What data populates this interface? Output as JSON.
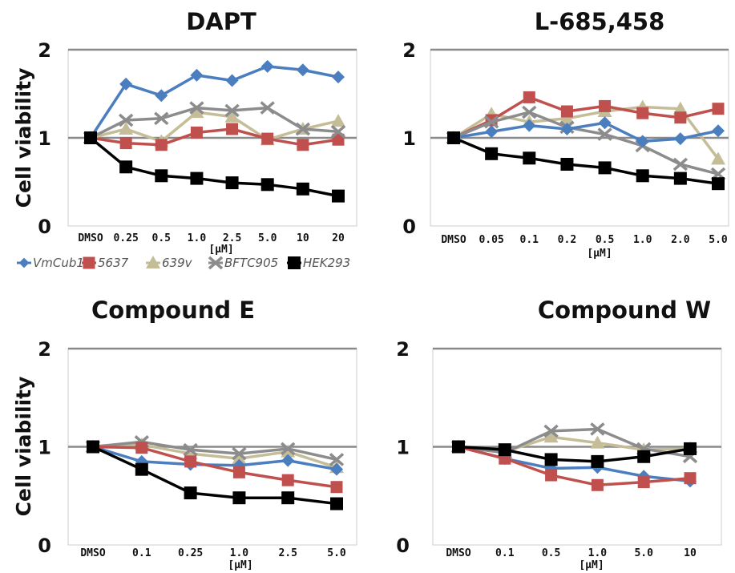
{
  "legend": [
    {
      "name": "VmCub1",
      "color": "#4a7ebf",
      "marker": "diamond"
    },
    {
      "name": "5637",
      "color": "#c0504d",
      "marker": "square"
    },
    {
      "name": "639v",
      "color": "#c4bd97",
      "marker": "triangle"
    },
    {
      "name": "BFTC905",
      "color": "#8c8c8c",
      "marker": "x"
    },
    {
      "name": "HEK293",
      "color": "#000000",
      "marker": "square"
    }
  ],
  "chart_data": [
    {
      "type": "line",
      "title": "DAPT",
      "ylabel": "Cell viability",
      "xlabel": "[µM]",
      "ylim": [
        0,
        2
      ],
      "yticks": [
        "0",
        "1",
        "2"
      ],
      "categories": [
        "DMSO",
        "0.25",
        "0.5",
        "1.0",
        "2.5",
        "5.0",
        "10",
        "20"
      ],
      "series": [
        {
          "name": "VmCub1",
          "values": [
            1.0,
            1.61,
            1.48,
            1.71,
            1.65,
            1.81,
            1.77,
            1.69
          ]
        },
        {
          "name": "5637",
          "values": [
            1.0,
            0.94,
            0.92,
            1.06,
            1.1,
            0.99,
            0.92,
            0.98
          ]
        },
        {
          "name": "639v",
          "values": [
            1.0,
            1.1,
            0.96,
            1.29,
            1.24,
            0.98,
            1.1,
            1.19
          ]
        },
        {
          "name": "BFTC905",
          "values": [
            1.0,
            1.2,
            1.22,
            1.34,
            1.31,
            1.34,
            1.1,
            1.07
          ]
        },
        {
          "name": "HEK293",
          "values": [
            1.0,
            0.67,
            0.57,
            0.54,
            0.49,
            0.47,
            0.42,
            0.34
          ]
        }
      ]
    },
    {
      "type": "line",
      "title": "L-685,458",
      "ylabel": "",
      "xlabel": "[µM]",
      "ylim": [
        0,
        2
      ],
      "yticks": [
        "0",
        "1",
        "2"
      ],
      "categories": [
        "DMSO",
        "0.05",
        "0.1",
        "0.2",
        "0.5",
        "1.0",
        "2.0",
        "5.0"
      ],
      "series": [
        {
          "name": "VmCub1",
          "values": [
            1.0,
            1.07,
            1.14,
            1.1,
            1.17,
            0.96,
            0.99,
            1.08
          ]
        },
        {
          "name": "5637",
          "values": [
            1.0,
            1.2,
            1.46,
            1.3,
            1.36,
            1.28,
            1.23,
            1.33
          ]
        },
        {
          "name": "639v",
          "values": [
            1.0,
            1.27,
            1.18,
            1.22,
            1.3,
            1.35,
            1.33,
            0.76
          ]
        },
        {
          "name": "BFTC905",
          "values": [
            1.0,
            1.18,
            1.29,
            1.12,
            1.04,
            0.91,
            0.7,
            0.59
          ]
        },
        {
          "name": "HEK293",
          "values": [
            1.0,
            0.82,
            0.77,
            0.7,
            0.66,
            0.57,
            0.54,
            0.48
          ]
        }
      ]
    },
    {
      "type": "line",
      "title": "Compound E",
      "ylabel": "Cell viability",
      "xlabel": "[µM]",
      "ylim": [
        0,
        2
      ],
      "yticks": [
        "0",
        "1",
        "2"
      ],
      "categories": [
        "DMSO",
        "0.1",
        "0.25",
        "1.0",
        "2.5",
        "5.0"
      ],
      "series": [
        {
          "name": "VmCub1",
          "values": [
            1.0,
            0.85,
            0.82,
            0.81,
            0.86,
            0.77
          ]
        },
        {
          "name": "5637",
          "values": [
            1.0,
            0.99,
            0.85,
            0.74,
            0.66,
            0.59
          ]
        },
        {
          "name": "639v",
          "values": [
            1.0,
            1.02,
            0.93,
            0.88,
            0.95,
            0.79
          ]
        },
        {
          "name": "BFTC905",
          "values": [
            1.0,
            1.05,
            0.97,
            0.93,
            0.98,
            0.87
          ]
        },
        {
          "name": "HEK293",
          "values": [
            1.0,
            0.77,
            0.53,
            0.48,
            0.48,
            0.42
          ]
        }
      ]
    },
    {
      "type": "line",
      "title": "Compound W",
      "ylabel": "",
      "xlabel": "[µM]",
      "ylim": [
        0,
        2
      ],
      "yticks": [
        "0",
        "1",
        "2"
      ],
      "categories": [
        "DMSO",
        "0.1",
        "0.5",
        "1.0",
        "5.0",
        "10"
      ],
      "series": [
        {
          "name": "VmCub1",
          "values": [
            1.0,
            0.88,
            0.78,
            0.79,
            0.7,
            0.65
          ]
        },
        {
          "name": "5637",
          "values": [
            1.0,
            0.88,
            0.71,
            0.61,
            0.64,
            0.68
          ]
        },
        {
          "name": "639v",
          "values": [
            1.0,
            0.95,
            1.1,
            1.04,
            0.97,
            0.98
          ]
        },
        {
          "name": "BFTC905",
          "values": [
            1.0,
            0.94,
            1.16,
            1.18,
            0.98,
            0.9
          ]
        },
        {
          "name": "HEK293",
          "values": [
            1.0,
            0.97,
            0.87,
            0.85,
            0.9,
            0.98
          ]
        }
      ]
    }
  ]
}
